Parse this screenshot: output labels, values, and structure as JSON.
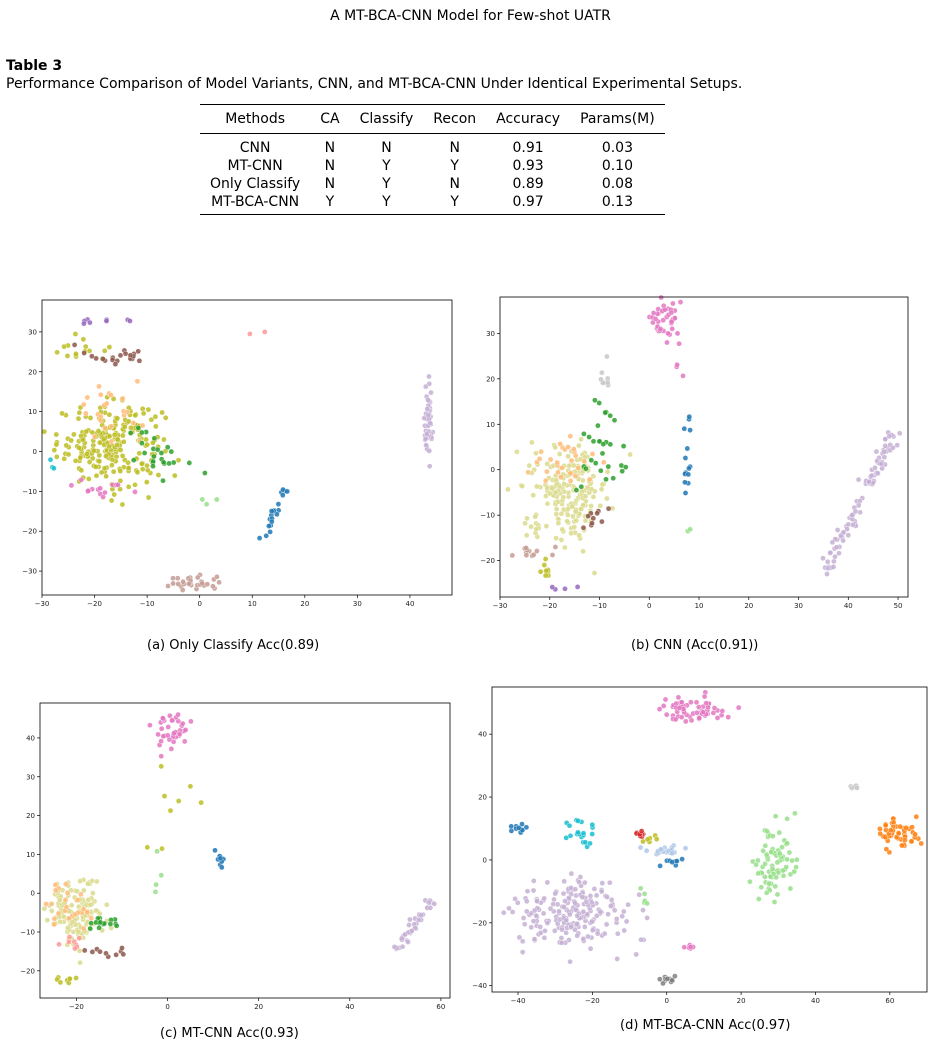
{
  "header": {
    "running_title": "A MT-BCA-CNN Model for Few-shot UATR"
  },
  "table": {
    "label": "Table 3",
    "caption": "Performance Comparison of Model Variants, CNN, and MT-BCA-CNN Under Identical Experimental Setups.",
    "columns": [
      "Methods",
      "CA",
      "Classify",
      "Recon",
      "Accuracy",
      "Params(M)"
    ],
    "rows": [
      [
        "CNN",
        "N",
        "N",
        "N",
        "0.91",
        "0.03"
      ],
      [
        "MT-CNN",
        "N",
        "Y",
        "Y",
        "0.93",
        "0.10"
      ],
      [
        "Only Classify",
        "N",
        "Y",
        "N",
        "0.89",
        "0.08"
      ],
      [
        "MT-BCA-CNN",
        "Y",
        "Y",
        "Y",
        "0.97",
        "0.13"
      ]
    ]
  },
  "colors": {
    "blue": "#1f77b4",
    "orange": "#ff7f0e",
    "green": "#2ca02c",
    "red": "#d62728",
    "purple": "#9467bd",
    "brown": "#8c564b",
    "pink": "#e377c2",
    "gray": "#7f7f7f",
    "olive": "#bcbd22",
    "cyan": "#17becf",
    "lightblue": "#aec7e8",
    "lightorange": "#ffbb78",
    "lightgreen": "#98df8a",
    "lightred": "#ff9896",
    "lavender": "#c5b0d5",
    "tan": "#c49c94",
    "lightpink": "#f7b6d2",
    "lightgray": "#c7c7c7",
    "lightolive": "#dbdb8d"
  },
  "chart_data": [
    {
      "type": "scatter",
      "caption": "(a) Only Classify Acc(0.89)",
      "xlim": [
        -30,
        48
      ],
      "ylim": [
        -36,
        38
      ],
      "xticks": [
        -30,
        -20,
        -10,
        0,
        10,
        20,
        30,
        40
      ],
      "yticks": [
        -30,
        -20,
        -10,
        0,
        10,
        20,
        30
      ],
      "grid": false,
      "clusters": [
        {
          "color": "olive",
          "cx": -17,
          "cy": 2,
          "sx": 5,
          "sy": 5,
          "n": 230
        },
        {
          "color": "olive",
          "cx": -22,
          "cy": 25,
          "sx": 3,
          "sy": 1.5,
          "n": 15
        },
        {
          "color": "lightorange",
          "cx": -17,
          "cy": 9,
          "sx": 3,
          "sy": 4,
          "n": 25
        },
        {
          "color": "pink",
          "cx": -18,
          "cy": -9,
          "sx": 3,
          "sy": 1.5,
          "n": 15
        },
        {
          "color": "purple",
          "cx": -19,
          "cy": 33,
          "sx": 2.5,
          "sy": 0.6,
          "n": 8
        },
        {
          "color": "brown",
          "cx": -12,
          "cy": 24,
          "sx": 2,
          "sy": 0.8,
          "n": 10
        },
        {
          "color": "brown",
          "cx": -19,
          "cy": 24,
          "sx": 2.5,
          "sy": 1,
          "n": 10
        },
        {
          "color": "green",
          "cx": -8,
          "cy": 0,
          "sx": 3,
          "sy": 3,
          "n": 25
        },
        {
          "color": "cyan",
          "cx": -28,
          "cy": -3,
          "sx": 0.7,
          "sy": 0.7,
          "n": 3
        },
        {
          "color": "lightred",
          "cx": 11,
          "cy": 30,
          "sx": 0.5,
          "sy": 0.4,
          "n": 2
        },
        {
          "color": "lightgreen",
          "cx": 2,
          "cy": -12,
          "sx": 1.5,
          "sy": 1.5,
          "n": 3
        },
        {
          "color": "tan",
          "cx": -1,
          "cy": -33,
          "sx": 2.5,
          "sy": 1,
          "n": 30
        },
        {
          "color": "lavender",
          "cx": 43.5,
          "cy": 6,
          "sx": 0.4,
          "sy": 5,
          "n": 50
        }
      ],
      "lines": [
        {
          "color": "blue",
          "x0": 12,
          "y0": -22,
          "x1": 16.5,
          "y1": -8,
          "n": 20,
          "jitter": 0.5
        }
      ]
    },
    {
      "type": "scatter",
      "caption": "(b) CNN (Acc(0.91))",
      "xlim": [
        -30,
        52
      ],
      "ylim": [
        -28,
        38
      ],
      "xticks": [
        -30,
        -20,
        -10,
        0,
        10,
        20,
        30,
        40,
        50
      ],
      "yticks": [
        -20,
        -10,
        0,
        10,
        20,
        30
      ],
      "grid": false,
      "clusters": [
        {
          "color": "lightolive",
          "cx": -16,
          "cy": -5,
          "sx": 4,
          "sy": 5,
          "n": 200
        },
        {
          "color": "lightorange",
          "cx": -19,
          "cy": 2,
          "sx": 4,
          "sy": 3,
          "n": 30
        },
        {
          "color": "green",
          "cx": -11,
          "cy": 3,
          "sx": 3,
          "sy": 6,
          "n": 30
        },
        {
          "color": "brown",
          "cx": -11,
          "cy": -11,
          "sx": 1.5,
          "sy": 1.5,
          "n": 10
        },
        {
          "color": "tan",
          "cx": -22,
          "cy": -18,
          "sx": 3,
          "sy": 1,
          "n": 12
        },
        {
          "color": "olive",
          "cx": -21,
          "cy": -22,
          "sx": 1,
          "sy": 1,
          "n": 8
        },
        {
          "color": "pink",
          "cx": 3,
          "cy": 33,
          "sx": 1.5,
          "sy": 2.5,
          "n": 40
        },
        {
          "color": "lightgray",
          "cx": -9,
          "cy": 20,
          "sx": 0.8,
          "sy": 1.5,
          "n": 8
        },
        {
          "color": "blue",
          "cx": 7.5,
          "cy": 3,
          "sx": 0.5,
          "sy": 5,
          "n": 15
        },
        {
          "color": "purple",
          "cx": -18,
          "cy": -26,
          "sx": 1.5,
          "sy": 0.4,
          "n": 4
        },
        {
          "color": "lightgreen",
          "cx": 8,
          "cy": -13,
          "sx": 0.6,
          "sy": 0.4,
          "n": 2
        },
        {
          "color": "pink",
          "cx": 6,
          "cy": 23,
          "sx": 0.4,
          "sy": 1.5,
          "n": 3
        }
      ],
      "lines": [
        {
          "color": "lavender",
          "x0": 35,
          "y0": -23,
          "x1": 49.5,
          "y1": 8.5,
          "n": 90,
          "jitter": 0.7
        }
      ]
    },
    {
      "type": "scatter",
      "caption": "(c) MT-CNN Acc(0.93)",
      "xlim": [
        -28,
        62
      ],
      "ylim": [
        -27,
        49
      ],
      "xticks": [
        -20,
        0,
        20,
        40,
        60
      ],
      "yticks": [
        -20,
        -10,
        0,
        10,
        20,
        30,
        40
      ],
      "grid": false,
      "clusters": [
        {
          "color": "lightolive",
          "cx": -20,
          "cy": -5,
          "sx": 3,
          "sy": 4,
          "n": 150
        },
        {
          "color": "lightorange",
          "cx": -21,
          "cy": -3,
          "sx": 3,
          "sy": 3,
          "n": 25
        },
        {
          "color": "green",
          "cx": -14,
          "cy": -8,
          "sx": 2,
          "sy": 1,
          "n": 15
        },
        {
          "color": "brown",
          "cx": -13,
          "cy": -15,
          "sx": 3,
          "sy": 0.8,
          "n": 10
        },
        {
          "color": "lightred",
          "cx": -21,
          "cy": -13,
          "sx": 1.5,
          "sy": 1,
          "n": 8
        },
        {
          "color": "olive",
          "cx": -22,
          "cy": -22,
          "sx": 1,
          "sy": 0.7,
          "n": 8
        },
        {
          "color": "pink",
          "cx": 1,
          "cy": 42,
          "sx": 2,
          "sy": 2.5,
          "n": 40
        },
        {
          "color": "olive",
          "cx": 4,
          "cy": 20,
          "sx": 4,
          "sy": 8,
          "n": 8
        },
        {
          "color": "blue",
          "cx": 11.5,
          "cy": 9,
          "sx": 0.4,
          "sy": 1.5,
          "n": 10
        },
        {
          "color": "lightgreen",
          "cx": -3,
          "cy": 5,
          "sx": 1,
          "sy": 5,
          "n": 4
        }
      ],
      "lines": [
        {
          "color": "lavender",
          "x0": 50,
          "y0": -15,
          "x1": 58,
          "y1": -2,
          "n": 40,
          "jitter": 0.6
        }
      ]
    },
    {
      "type": "scatter",
      "caption": "(d) MT-BCA-CNN Acc(0.97)",
      "xlim": [
        -47,
        70
      ],
      "ylim": [
        -42,
        55
      ],
      "xticks": [
        -40,
        -20,
        0,
        20,
        40,
        60
      ],
      "yticks": [
        -40,
        -20,
        0,
        20,
        40
      ],
      "grid": false,
      "clusters": [
        {
          "color": "lavender",
          "cx": -25,
          "cy": -17,
          "sx": 8,
          "sy": 6,
          "n": 200
        },
        {
          "color": "pink",
          "cx": 7,
          "cy": 48,
          "sx": 6,
          "sy": 2,
          "n": 60
        },
        {
          "color": "lightgreen",
          "cx": 29,
          "cy": 0,
          "sx": 3,
          "sy": 7,
          "n": 80
        },
        {
          "color": "orange",
          "cx": 62,
          "cy": 8,
          "sx": 2.5,
          "sy": 2.5,
          "n": 50
        },
        {
          "color": "cyan",
          "cx": -25,
          "cy": 8,
          "sx": 2.5,
          "sy": 3,
          "n": 20
        },
        {
          "color": "blue",
          "cx": -40,
          "cy": 10,
          "sx": 1.5,
          "sy": 1,
          "n": 10
        },
        {
          "color": "red",
          "cx": -7,
          "cy": 8,
          "sx": 1,
          "sy": 0.6,
          "n": 8
        },
        {
          "color": "olive",
          "cx": -5,
          "cy": 7,
          "sx": 1,
          "sy": 0.6,
          "n": 6
        },
        {
          "color": "lightblue",
          "cx": 0,
          "cy": 3,
          "sx": 3,
          "sy": 1,
          "n": 25
        },
        {
          "color": "blue",
          "cx": 2,
          "cy": 0,
          "sx": 2,
          "sy": 0.8,
          "n": 8
        },
        {
          "color": "gray",
          "cx": 0,
          "cy": -38,
          "sx": 1.5,
          "sy": 0.8,
          "n": 12
        },
        {
          "color": "pink",
          "cx": 6,
          "cy": -28,
          "sx": 1,
          "sy": 0.5,
          "n": 6
        },
        {
          "color": "lightgray",
          "cx": 50,
          "cy": 23,
          "sx": 1,
          "sy": 0.3,
          "n": 5
        },
        {
          "color": "lightgreen",
          "cx": -6,
          "cy": -12,
          "sx": 0.5,
          "sy": 2,
          "n": 5
        }
      ],
      "lines": []
    }
  ]
}
